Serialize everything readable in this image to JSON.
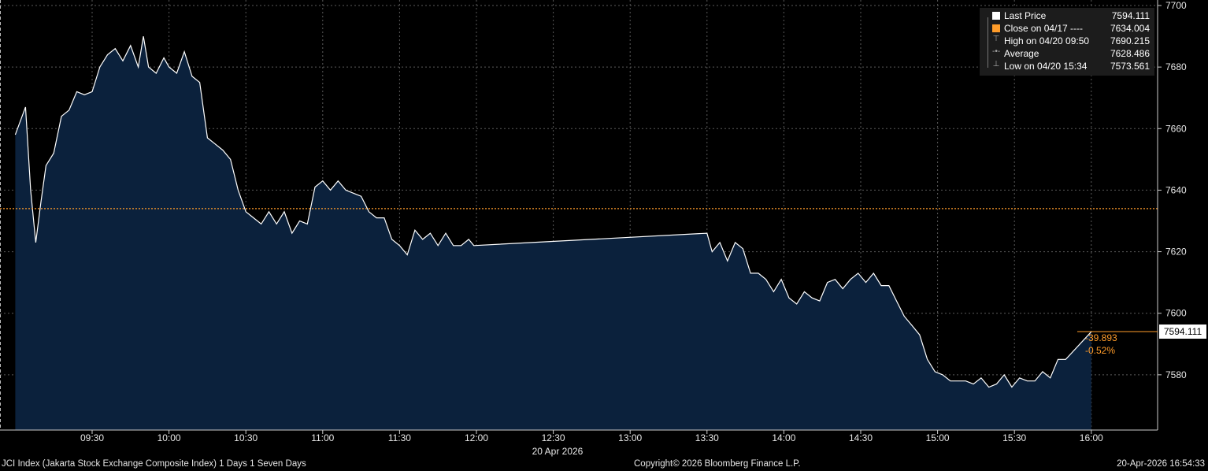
{
  "chart_data": {
    "type": "area",
    "instrument": "JCI Index",
    "ylim": [
      7560,
      7700
    ],
    "y_ticks": [
      "7580",
      "7600",
      "7620",
      "7640",
      "7660",
      "7680",
      "7700"
    ],
    "x_ticks": [
      "09:30",
      "10:00",
      "10:30",
      "11:00",
      "11:30",
      "12:00",
      "12:30",
      "13:00",
      "13:30",
      "14:00",
      "14:30",
      "15:00",
      "15:30",
      "16:00"
    ],
    "date_label": "20 Apr 2026",
    "series": [
      {
        "name": "Last Price",
        "x": [
          "09:00",
          "09:04",
          "09:06",
          "09:08",
          "09:10",
          "09:12",
          "09:15",
          "09:18",
          "09:21",
          "09:24",
          "09:27",
          "09:30",
          "09:33",
          "09:36",
          "09:39",
          "09:42",
          "09:45",
          "09:48",
          "09:50",
          "09:52",
          "09:55",
          "09:58",
          "10:00",
          "10:03",
          "10:06",
          "10:09",
          "10:12",
          "10:15",
          "10:18",
          "10:21",
          "10:24",
          "10:27",
          "10:30",
          "10:33",
          "10:36",
          "10:39",
          "10:42",
          "10:45",
          "10:48",
          "10:51",
          "10:54",
          "10:57",
          "11:00",
          "11:03",
          "11:06",
          "11:09",
          "11:12",
          "11:15",
          "11:18",
          "11:21",
          "11:24",
          "11:27",
          "11:30",
          "11:33",
          "11:36",
          "11:39",
          "11:42",
          "11:45",
          "11:48",
          "11:51",
          "11:54",
          "11:57",
          "11:59",
          "13:30",
          "13:32",
          "13:35",
          "13:38",
          "13:41",
          "13:44",
          "13:47",
          "13:50",
          "13:53",
          "13:56",
          "13:59",
          "14:02",
          "14:05",
          "14:08",
          "14:11",
          "14:14",
          "14:17",
          "14:20",
          "14:23",
          "14:26",
          "14:29",
          "14:32",
          "14:35",
          "14:38",
          "14:41",
          "14:44",
          "14:47",
          "14:50",
          "14:53",
          "14:56",
          "14:59",
          "15:02",
          "15:05",
          "15:08",
          "15:11",
          "15:14",
          "15:17",
          "15:20",
          "15:23",
          "15:26",
          "15:29",
          "15:32",
          "15:35",
          "15:38",
          "15:41",
          "15:44",
          "15:47",
          "15:50",
          "16:00"
        ],
        "y": [
          7658,
          7667,
          7640,
          7623,
          7636,
          7648,
          7652,
          7664,
          7666,
          7672,
          7671,
          7672,
          7680,
          7684,
          7686,
          7682,
          7687,
          7680,
          7690,
          7680,
          7678,
          7683,
          7680,
          7678,
          7685,
          7677,
          7675,
          7657,
          7655,
          7653,
          7650,
          7640,
          7633,
          7631,
          7629,
          7633,
          7629,
          7633,
          7626,
          7630,
          7629,
          7641,
          7643,
          7640,
          7643,
          7640,
          7639,
          7638,
          7633,
          7631,
          7631,
          7624,
          7622,
          7619,
          7627,
          7624,
          7626,
          7622,
          7626,
          7622,
          7622,
          7624,
          7622,
          7626,
          7620,
          7623,
          7617,
          7623,
          7621,
          7613,
          7613,
          7611,
          7607,
          7611,
          7605,
          7603,
          7607,
          7605,
          7604,
          7610,
          7611,
          7608,
          7611,
          7613,
          7610,
          7613,
          7609,
          7609,
          7604,
          7599,
          7596,
          7593,
          7585,
          7581,
          7580,
          7578,
          7578,
          7578,
          7577,
          7579,
          7576,
          7577,
          7580,
          7576,
          7579,
          7578,
          7578,
          7581,
          7579,
          7585,
          7585,
          7594
        ]
      }
    ],
    "previous_close": {
      "label": "Close on 04/17",
      "value": 7634.004,
      "color": "#ff9c2a"
    },
    "last_price_tag": "7594.111",
    "change_label": "-39.893",
    "change_pct_label": "-0.52%",
    "grid": true,
    "colors": {
      "fill": "#0b213c",
      "line": "#ffffff",
      "grid": "#5a5a5a",
      "accent": "#ff9c2a"
    }
  },
  "legend": {
    "items": [
      {
        "name": "Last Price",
        "value": "7594.111",
        "icon": "white-square-icon"
      },
      {
        "name": "Close on 04/17 ----",
        "value": "7634.004",
        "icon": "orange-square-icon"
      },
      {
        "name": "High on 04/20 09:50",
        "value": "7690.215",
        "icon": "high-marker-icon"
      },
      {
        "name": "Average",
        "value": "7628.486",
        "icon": "average-marker-icon"
      },
      {
        "name": "Low on 04/20 15:34",
        "value": "7573.561",
        "icon": "low-marker-icon"
      }
    ]
  },
  "footer": {
    "left": "JCI Index (Jakarta Stock Exchange Composite Index) 1 Days 1 Seven Days",
    "center": "Copyright© 2026 Bloomberg Finance L.P.",
    "right": "20-Apr-2026 16:54:33"
  }
}
